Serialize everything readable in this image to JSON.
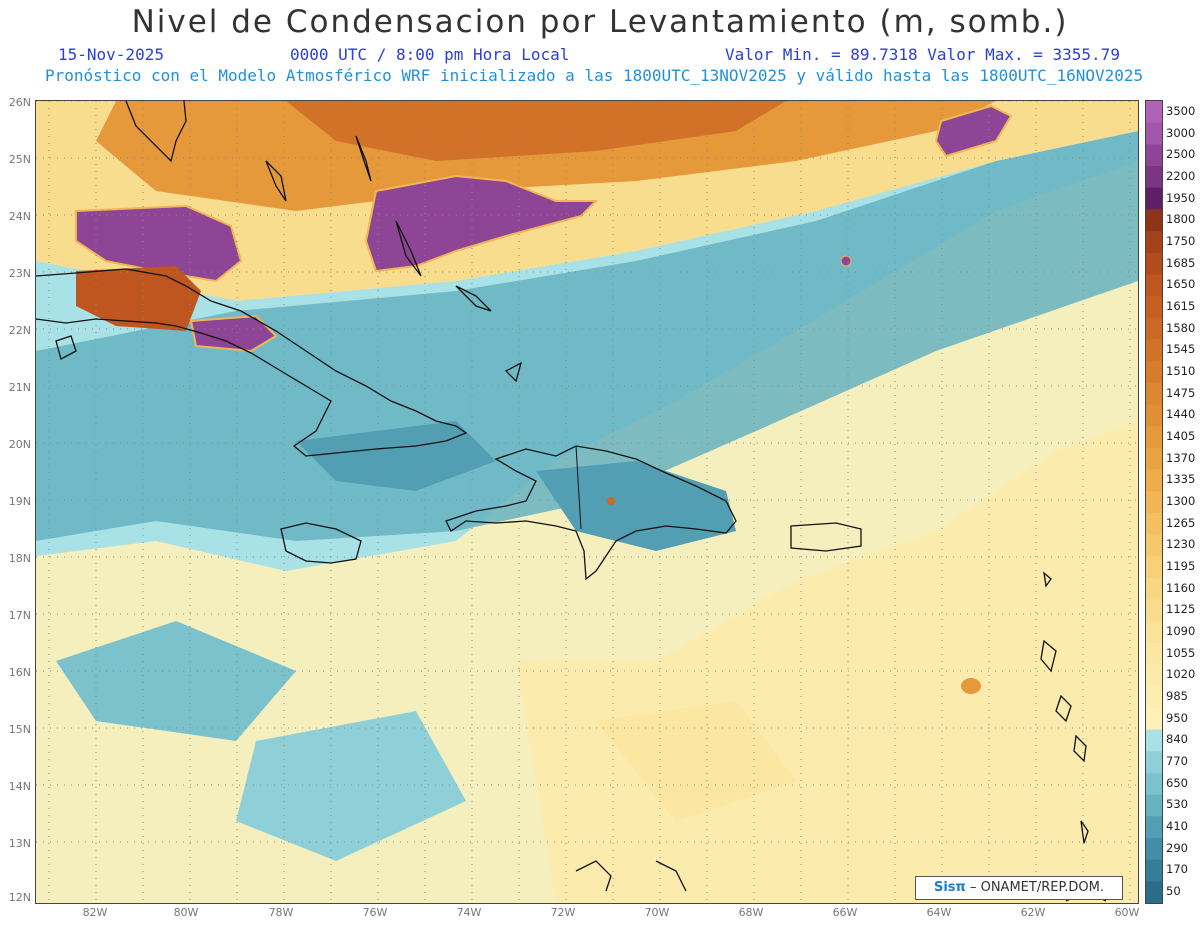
{
  "header": {
    "title": "Nivel de Condensacion por Levantamiento (m, somb.)",
    "date": "15-Nov-2025",
    "time": "0000 UTC / 8:00 pm Hora Local",
    "minmax": "Valor Min. = 89.7318  Valor Max. = 3355.79",
    "model_info": "Pronóstico con el Modelo Atmosférico WRF inicializado a las 1800UTC_13NOV2025 y válido hasta las  1800UTC_16NOV2025"
  },
  "map": {
    "lat_labels": [
      "26N",
      "25N",
      "24N",
      "23N",
      "22N",
      "21N",
      "20N",
      "19N",
      "18N",
      "17N",
      "16N",
      "15N",
      "14N",
      "13N",
      "12N"
    ],
    "lon_labels": [
      "82W",
      "80W",
      "78W",
      "76W",
      "74W",
      "72W",
      "70W",
      "68W",
      "66W",
      "64W",
      "62W",
      "60W"
    ]
  },
  "colorbar": {
    "levels": [
      "3500",
      "3000",
      "2500",
      "2200",
      "1950",
      "1800",
      "1750",
      "1685",
      "1650",
      "1615",
      "1580",
      "1545",
      "1510",
      "1475",
      "1440",
      "1405",
      "1370",
      "1335",
      "1300",
      "1265",
      "1230",
      "1195",
      "1160",
      "1125",
      "1090",
      "1055",
      "1020",
      "985",
      "950",
      "840",
      "770",
      "650",
      "530",
      "410",
      "290",
      "170",
      "50"
    ],
    "colors": [
      "#b062b4",
      "#a357a8",
      "#8f4595",
      "#7a3583",
      "#5e1f66",
      "#8c3318",
      "#a2411a",
      "#b24c1c",
      "#bf561f",
      "#c65f22",
      "#cc6825",
      "#d27228",
      "#d77c2c",
      "#dc8630",
      "#e18f35",
      "#e5993b",
      "#e9a343",
      "#edad4b",
      "#f0b655",
      "#f3bf60",
      "#f5c86b",
      "#f7d077",
      "#f8d783",
      "#f9dd8e",
      "#fae298",
      "#fbe7a2",
      "#fceaa9",
      "#fcedb1",
      "#fdf0b8",
      "#a9e2e6",
      "#8fd0d8",
      "#7bc2cd",
      "#66b3c2",
      "#529fb3",
      "#438ea6",
      "#357d98",
      "#2a6c8a"
    ]
  },
  "credit": {
    "logo": "Sisπ",
    "text": "– ONAMET/REP.DOM."
  }
}
